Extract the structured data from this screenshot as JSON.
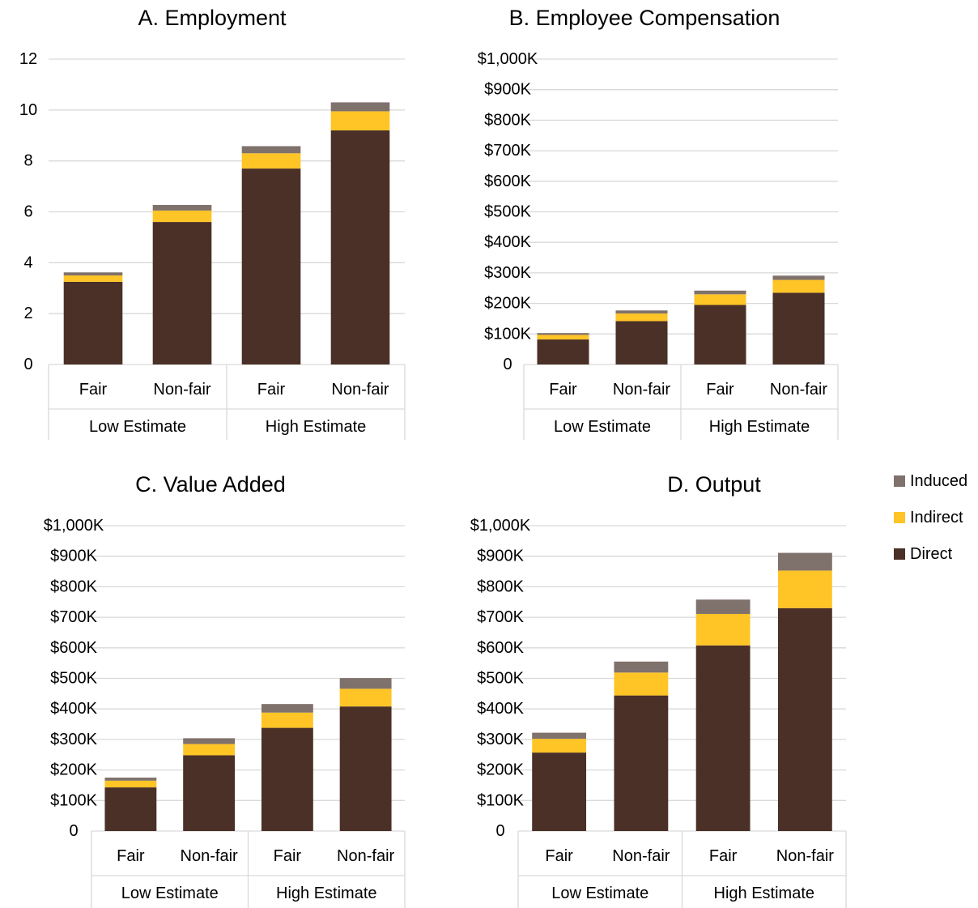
{
  "colors": {
    "Direct": "#4a3027",
    "Indirect": "#ffc425",
    "Induced": "#7f716b"
  },
  "legend": {
    "items": [
      {
        "name": "Induced",
        "color": "#7f716b"
      },
      {
        "name": "Indirect",
        "color": "#ffc425"
      },
      {
        "name": "Direct",
        "color": "#4a3027"
      }
    ]
  },
  "chart_data": [
    {
      "type": "bar",
      "stacked": true,
      "title": "A. Employment",
      "categories": [
        "Fair",
        "Non-fair",
        "Fair",
        "Non-fair"
      ],
      "groups": [
        "Low Estimate",
        "High Estimate"
      ],
      "series": [
        {
          "name": "Direct",
          "values": [
            3.25,
            5.6,
            7.7,
            9.2
          ]
        },
        {
          "name": "Indirect",
          "values": [
            0.25,
            0.45,
            0.6,
            0.75
          ]
        },
        {
          "name": "Induced",
          "values": [
            0.12,
            0.22,
            0.28,
            0.35
          ]
        }
      ],
      "yticks": [
        "0",
        "2",
        "4",
        "6",
        "8",
        "10",
        "12"
      ],
      "ylim": [
        0,
        12
      ],
      "grid": true
    },
    {
      "type": "bar",
      "stacked": true,
      "title": "B. Employee Compensation",
      "categories": [
        "Fair",
        "Non-fair",
        "Fair",
        "Non-fair"
      ],
      "groups": [
        "Low Estimate",
        "High Estimate"
      ],
      "series": [
        {
          "name": "Direct",
          "values": [
            82,
            142,
            195,
            235
          ]
        },
        {
          "name": "Indirect",
          "values": [
            15,
            25,
            35,
            42
          ]
        },
        {
          "name": "Induced",
          "values": [
            6,
            10,
            12,
            14
          ]
        }
      ],
      "yticks": [
        "0",
        "$100K",
        "$200K",
        "$300K",
        "$400K",
        "$500K",
        "$600K",
        "$700K",
        "$800K",
        "$900K",
        "$1,000K"
      ],
      "ylim": [
        0,
        1000
      ],
      "grid": true
    },
    {
      "type": "bar",
      "stacked": true,
      "title": "C. Value Added",
      "categories": [
        "Fair",
        "Non-fair",
        "Fair",
        "Non-fair"
      ],
      "groups": [
        "Low Estimate",
        "High Estimate"
      ],
      "series": [
        {
          "name": "Direct",
          "values": [
            143,
            248,
            338,
            408
          ]
        },
        {
          "name": "Indirect",
          "values": [
            22,
            37,
            50,
            58
          ]
        },
        {
          "name": "Induced",
          "values": [
            10,
            19,
            28,
            35
          ]
        }
      ],
      "yticks": [
        "0",
        "$100K",
        "$200K",
        "$300K",
        "$400K",
        "$500K",
        "$600K",
        "$700K",
        "$800K",
        "$900K",
        "$1,000K"
      ],
      "ylim": [
        0,
        1000
      ],
      "grid": true
    },
    {
      "type": "bar",
      "stacked": true,
      "title": "D. Output",
      "categories": [
        "Fair",
        "Non-fair",
        "Fair",
        "Non-fair"
      ],
      "groups": [
        "Low Estimate",
        "High Estimate"
      ],
      "series": [
        {
          "name": "Direct",
          "values": [
            257,
            444,
            608,
            730
          ]
        },
        {
          "name": "Indirect",
          "values": [
            45,
            75,
            103,
            123
          ]
        },
        {
          "name": "Induced",
          "values": [
            20,
            36,
            47,
            58
          ]
        }
      ],
      "yticks": [
        "0",
        "$100K",
        "$200K",
        "$300K",
        "$400K",
        "$500K",
        "$600K",
        "$700K",
        "$800K",
        "$900K",
        "$1,000K"
      ],
      "ylim": [
        0,
        1000
      ],
      "grid": true
    }
  ]
}
